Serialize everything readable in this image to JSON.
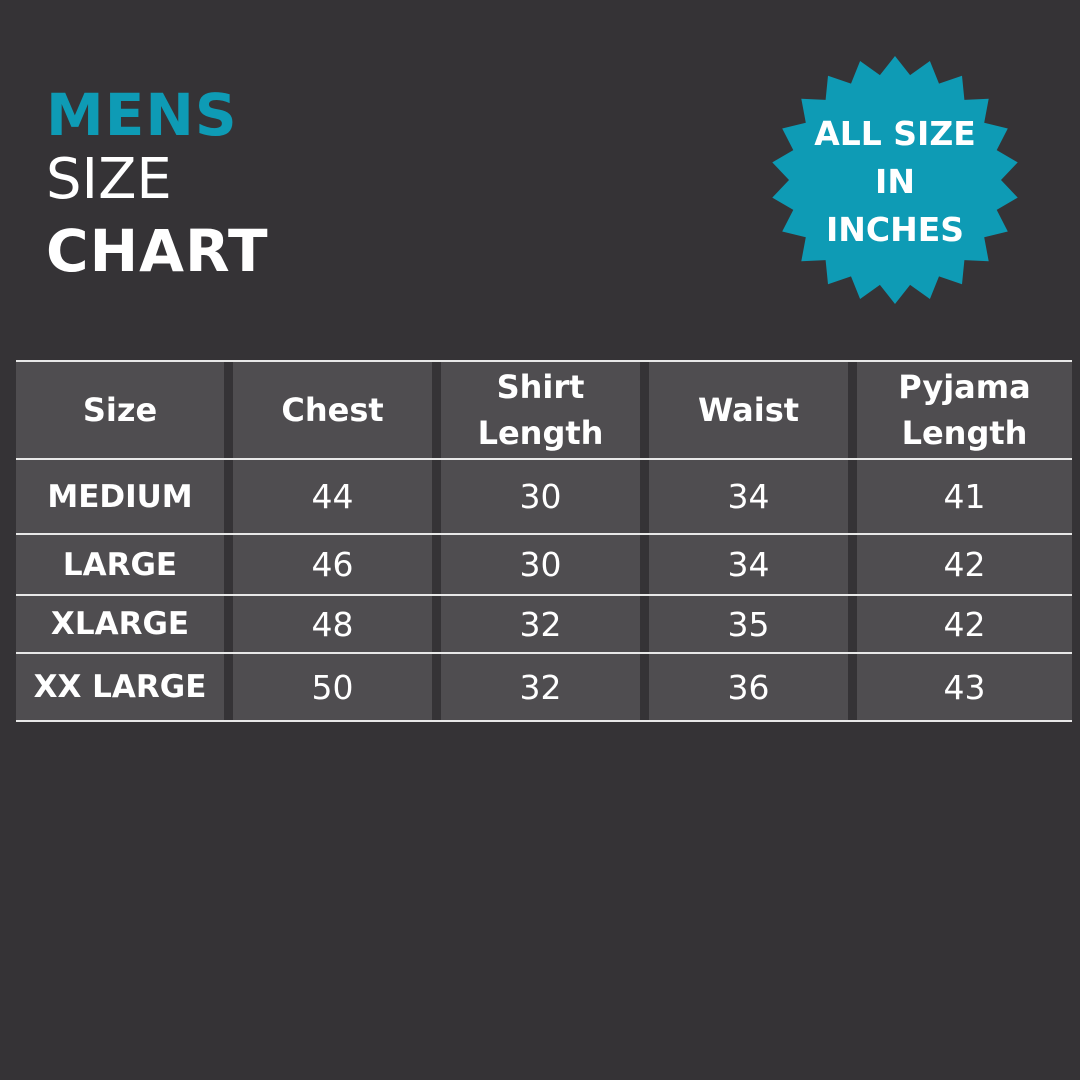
{
  "title": {
    "line1": "MENS",
    "line2": "SIZE",
    "line3": "CHART"
  },
  "badge": {
    "line1": "ALL SIZE",
    "line2": "IN",
    "line3": "INCHES",
    "shape": "starburst-icon"
  },
  "colors": {
    "accent": "#0e9bb5",
    "background": "#353336",
    "cell": "#4f4d50"
  },
  "table": {
    "headers": [
      "Size",
      "Chest",
      "Shirt Length",
      "Waist",
      "Pyjama Length"
    ],
    "rows": [
      [
        "MEDIUM",
        "44",
        "30",
        "34",
        "41"
      ],
      [
        "LARGE",
        "46",
        "30",
        "34",
        "42"
      ],
      [
        "XLARGE",
        "48",
        "32",
        "35",
        "42"
      ],
      [
        "XX LARGE",
        "50",
        "32",
        "36",
        "43"
      ]
    ]
  }
}
